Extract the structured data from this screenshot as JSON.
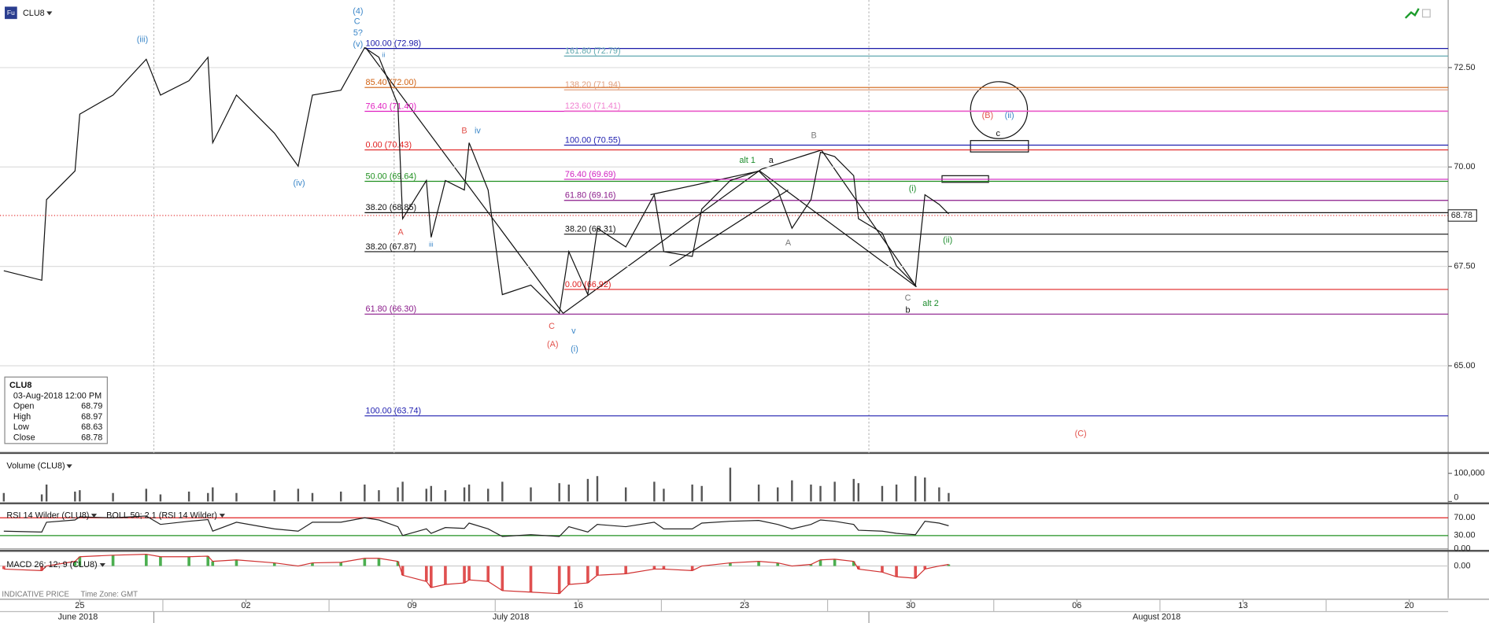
{
  "symbol": "CLU8",
  "icon": "Fu",
  "price_chart": {
    "type": "line",
    "color": "#111111",
    "x": [
      -3.2,
      -1.6,
      -1.4,
      -0.2,
      0.0,
      1.4,
      2.8,
      3.4,
      4.6,
      5.4,
      5.6,
      6.6,
      8.2,
      9.2,
      9.8,
      11.0,
      12.0,
      12.6,
      13.4,
      13.6,
      14.6,
      14.8,
      15.4,
      16.2,
      16.4,
      17.2,
      17.8,
      19.0,
      20.2,
      20.6,
      21.4,
      21.8,
      23.0,
      24.2,
      24.6,
      25.8,
      26.2,
      27.4,
      28.6,
      29.4,
      30.0,
      30.8,
      31.2,
      31.8,
      32.6,
      32.8,
      33.8,
      34.4,
      35.2,
      35.6,
      36.2,
      36.6
    ],
    "values": [
      67.39,
      67.15,
      69.18,
      69.9,
      71.33,
      71.81,
      72.71,
      71.81,
      72.17,
      72.76,
      70.61,
      71.81,
      70.85,
      70.02,
      71.81,
      71.93,
      73.0,
      72.76,
      71.57,
      68.7,
      69.66,
      68.23,
      69.66,
      69.42,
      70.61,
      69.42,
      66.79,
      67.03,
      66.32,
      67.87,
      66.79,
      68.46,
      67.99,
      69.3,
      67.87,
      67.75,
      68.94,
      69.66,
      69.9,
      69.42,
      68.46,
      69.18,
      70.37,
      70.26,
      69.78,
      68.7,
      68.34,
      67.51,
      67.03,
      69.3,
      69.06,
      68.82
    ],
    "xlim": [
      -3.36,
      57.64
    ],
    "xticks": [
      {
        "value": 0,
        "label": "25"
      },
      {
        "value": 7,
        "label": "02"
      },
      {
        "value": 14,
        "label": "09"
      },
      {
        "value": 21,
        "label": "16"
      },
      {
        "value": 28,
        "label": "23"
      },
      {
        "value": 35,
        "label": "30"
      },
      {
        "value": 42,
        "label": "06"
      },
      {
        "value": 49,
        "label": "13"
      },
      {
        "value": 56,
        "label": "20"
      }
    ],
    "ylim": [
      62.83,
      74.2
    ],
    "yticks": [
      {
        "value": 65,
        "label": "65.00"
      },
      {
        "value": 67.5,
        "label": "67.50"
      },
      {
        "value": 70,
        "label": "70.00"
      },
      {
        "value": 72.5,
        "label": "72.50"
      }
    ],
    "grid": true,
    "last_price": 68.78
  },
  "months": [
    "June 2018",
    "July 2018",
    "August 2018"
  ],
  "levels": [
    {
      "label": "100.00 (72.98)",
      "value": 72.98,
      "color": "#1a1aa8",
      "from": 12.0
    },
    {
      "label": "85.40 (72.00)",
      "value": 72.0,
      "color": "#d06010",
      "from": 12.0
    },
    {
      "label": "76.40 (71.40)",
      "value": 71.4,
      "color": "#e020c0",
      "from": 12.0
    },
    {
      "label": "0.00 (70.43)",
      "value": 70.43,
      "color": "#e02020",
      "from": 12.0
    },
    {
      "label": "50.00 (69.64)",
      "value": 69.64,
      "color": "#209020",
      "from": 12.0
    },
    {
      "label": "38.20 (68.85)",
      "value": 68.85,
      "color": "#111111",
      "from": 12.0
    },
    {
      "label": "38.20 (67.87)",
      "value": 67.87,
      "color": "#111111",
      "from": 12.0
    },
    {
      "label": "61.80 (66.30)",
      "value": 66.3,
      "color": "#8a1a8a",
      "from": 12.0
    },
    {
      "label": "100.00 (63.74)",
      "value": 63.74,
      "color": "#2020b0",
      "from": 12.0
    },
    {
      "label": "161.80 (72.79)",
      "value": 72.79,
      "color": "#60a8b0",
      "from": 20.4
    },
    {
      "label": "138.20 (71.94)",
      "value": 71.94,
      "color": "#e0a080",
      "from": 20.4
    },
    {
      "label": "123.60 (71.41)",
      "value": 71.41,
      "color": "#f080d0",
      "from": 20.4
    },
    {
      "label": "100.00 (70.55)",
      "value": 70.55,
      "color": "#2020b0",
      "from": 20.4
    },
    {
      "label": "76.40 (69.69)",
      "value": 69.69,
      "color": "#d020c0",
      "from": 20.4
    },
    {
      "label": "61.80 (69.16)",
      "value": 69.16,
      "color": "#8a1a8a",
      "from": 20.4
    },
    {
      "label": "38.20 (68.31)",
      "value": 68.31,
      "color": "#111111",
      "from": 20.4
    },
    {
      "label": "0.00 (66.92)",
      "value": 66.92,
      "color": "#e02020",
      "from": 20.4
    }
  ],
  "annotations": [
    "(iii)",
    "(iv)",
    "(4)",
    "C",
    "5?",
    "(v)",
    "ii",
    "B",
    "iv",
    "A",
    "iii",
    "C",
    "v",
    "(A)",
    "(i)",
    "alt 1",
    "a",
    "B",
    "A",
    "(i)",
    "(ii)",
    "C",
    "b",
    "alt 2",
    "(B)",
    "(ii)",
    "c",
    "(C)"
  ],
  "info": {
    "symbol": "CLU8",
    "datetime": "03-Aug-2018 12:00 PM",
    "rows": [
      [
        "Open",
        68.79
      ],
      [
        "High",
        68.97
      ],
      [
        "Low",
        68.63
      ],
      [
        "Close",
        68.78
      ]
    ]
  },
  "volume": {
    "title": "Volume (CLU8)",
    "color": "#555555",
    "values": [
      30000,
      25000,
      60000,
      35000,
      40000,
      30000,
      45000,
      25000,
      35000,
      30000,
      50000,
      30000,
      40000,
      45000,
      30000,
      35000,
      60000,
      40000,
      50000,
      70000,
      45000,
      55000,
      40000,
      50000,
      60000,
      45000,
      70000,
      50000,
      65000,
      60000,
      80000,
      90000,
      50000,
      70000,
      45000,
      60000,
      55000,
      120000,
      60000,
      50000,
      75000,
      60000,
      55000,
      70000,
      80000,
      65000,
      55000,
      60000,
      90000,
      85000,
      50000,
      30000
    ],
    "ylim": [
      0,
      162000
    ],
    "yticks": [
      {
        "value": 100000,
        "label": "100,000"
      },
      0
    ]
  },
  "rsi": {
    "title": "RSI 14 Wilder (CLU8)",
    "overlay": "BOLL 50; 2.1 (RSI 14 Wilder)",
    "color": "#222222",
    "values": [
      40,
      38,
      60,
      65,
      72,
      70,
      74,
      55,
      62,
      66,
      40,
      60,
      45,
      40,
      60,
      60,
      70,
      65,
      50,
      30,
      45,
      35,
      48,
      46,
      58,
      45,
      28,
      32,
      28,
      50,
      38,
      55,
      50,
      60,
      45,
      45,
      58,
      62,
      64,
      55,
      45,
      55,
      65,
      62,
      55,
      42,
      40,
      35,
      32,
      62,
      58,
      52
    ],
    "ylim": [
      0,
      96
    ],
    "yticks": [
      {
        "value": 70,
        "label": "70.00"
      },
      {
        "value": 30,
        "label": "30.00"
      },
      {
        "value": 0,
        "label": "0.00"
      }
    ],
    "tick_colors": [
      "#e02020",
      "#209020",
      "#888888"
    ]
  },
  "macd": {
    "title": "MACD 26; 12; 9 (CLU8)",
    "up_color": "#4caf50",
    "down_color": "#e05050",
    "values": [
      -0.1,
      -0.15,
      0.0,
      0.15,
      0.3,
      0.35,
      0.38,
      0.3,
      0.3,
      0.32,
      0.15,
      0.2,
      0.1,
      0.0,
      0.1,
      0.12,
      0.25,
      0.25,
      0.15,
      -0.3,
      -0.5,
      -0.7,
      -0.6,
      -0.55,
      -0.45,
      -0.5,
      -0.8,
      -0.85,
      -0.9,
      -0.6,
      -0.55,
      -0.3,
      -0.25,
      -0.1,
      -0.1,
      -0.15,
      0.0,
      0.1,
      0.15,
      0.1,
      0.0,
      0.05,
      0.2,
      0.22,
      0.15,
      -0.1,
      -0.2,
      -0.35,
      -0.4,
      -0.1,
      0.0,
      0.05
    ],
    "ylim": [
      -1.05,
      0.4
    ],
    "yticks": [
      {
        "value": 0,
        "label": "0.00"
      }
    ]
  },
  "footer": [
    "INDICATIVE PRICE",
    "Time Zone: GMT"
  ]
}
